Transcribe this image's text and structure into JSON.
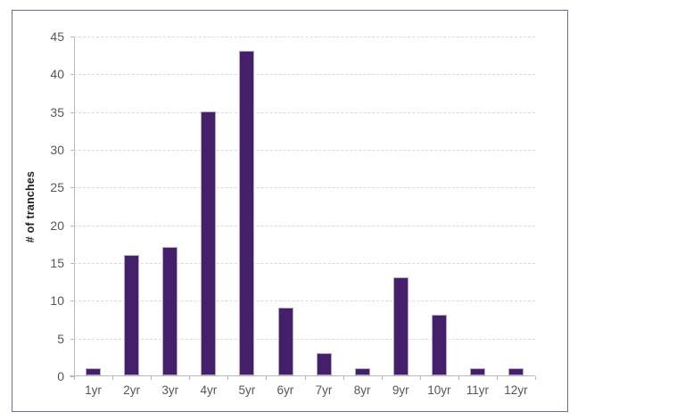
{
  "figure": {
    "background": "#ffffff",
    "border_color": "#7e63a4"
  },
  "chart_data": {
    "type": "bar",
    "categories": [
      "1yr",
      "2yr",
      "3yr",
      "4yr",
      "5yr",
      "6yr",
      "7yr",
      "8yr",
      "9yr",
      "10yr",
      "11yr",
      "12yr"
    ],
    "values": [
      1,
      16,
      17,
      35,
      43,
      9,
      3,
      1,
      13,
      8,
      1,
      1
    ],
    "title": "",
    "xlabel": "",
    "ylabel": "# of tranches",
    "ylim": [
      0,
      45
    ],
    "ytick_step": 5,
    "grid": "horizontal-dashed",
    "legend": "none",
    "colors": {
      "bar_fill": "#432069",
      "bar_outline": "#b3a4cb",
      "gridline": "#d9d9d9",
      "axis_line": "#b7b7b7",
      "tick_label": "#565656",
      "axis_title": "#1f1f1f"
    }
  }
}
